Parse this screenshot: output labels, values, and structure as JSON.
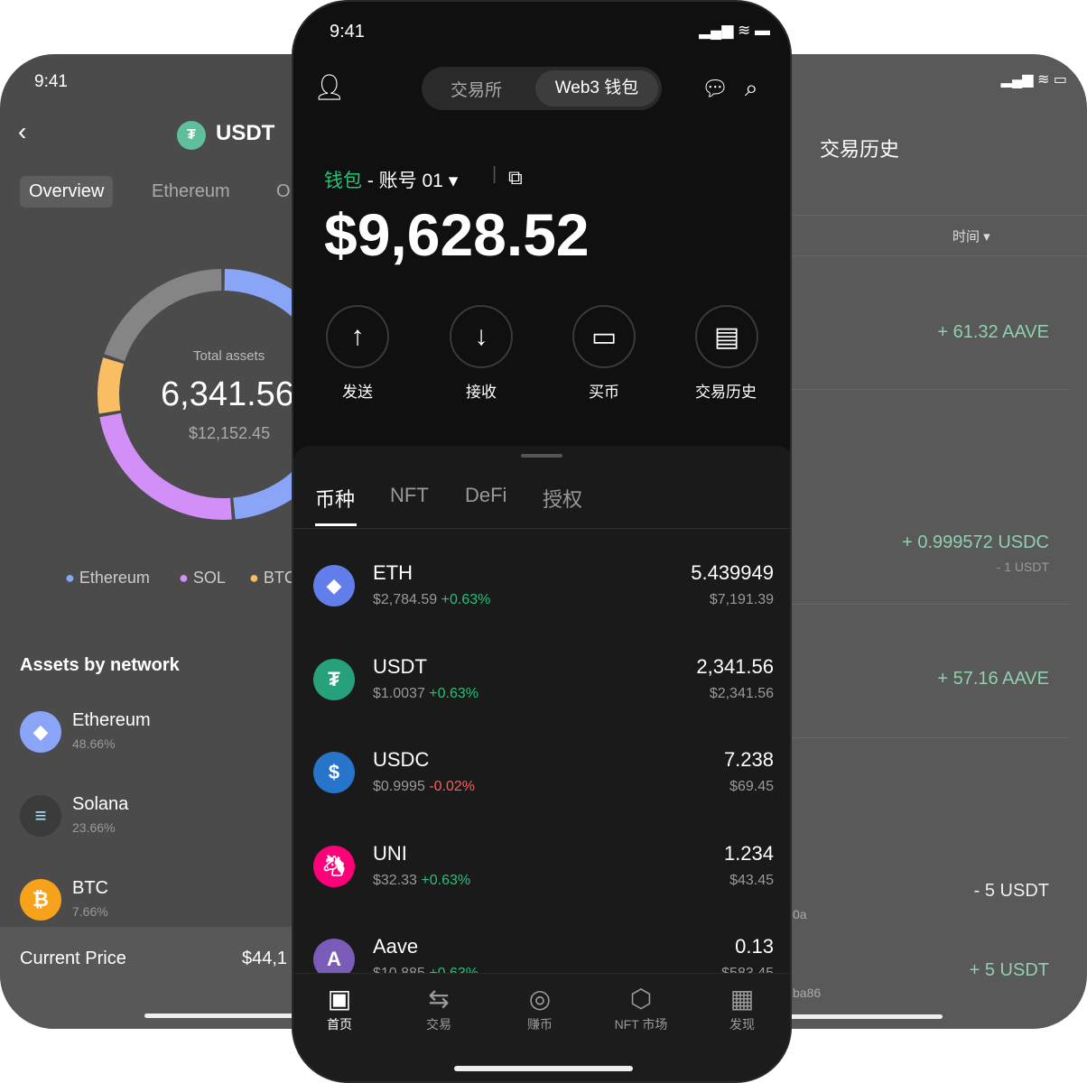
{
  "left": {
    "time": "9:41",
    "title": "USDT",
    "tabs": [
      "Overview",
      "Ethereum",
      "O"
    ],
    "total_label": "Total assets",
    "total_value": "6,341.56",
    "total_usd": "$12,152.45",
    "legend": [
      {
        "label": "Ethereum",
        "color": "#8aa4f7"
      },
      {
        "label": "SOL",
        "color": "#d28ff7"
      },
      {
        "label": "BTC",
        "color": "#f9bd63"
      }
    ],
    "donut": [
      {
        "name": "Ethereum",
        "share": 48.66,
        "color": "#8aa4f7"
      },
      {
        "name": "Solana",
        "share": 23.66,
        "color": "#d28ff7"
      },
      {
        "name": "BTC",
        "share": 7.66,
        "color": "#f9bd63"
      },
      {
        "name": "Other",
        "share": 20.02,
        "color": "#858585"
      }
    ],
    "section_title": "Assets by network",
    "networks": [
      {
        "name": "Ethereum",
        "pct": "48.66%"
      },
      {
        "name": "Solana",
        "pct": "23.66%"
      },
      {
        "name": "BTC",
        "pct": "7.66%"
      }
    ],
    "current_price_label": "Current Price",
    "current_price": "$44,1"
  },
  "center": {
    "time": "9:41",
    "seg_tabs": [
      "交易所",
      "Web3 钱包"
    ],
    "wallet_label": "钱包",
    "account": "- 账号 01",
    "balance": "$9,628.52",
    "actions": [
      "发送",
      "接收",
      "买币",
      "交易历史"
    ],
    "tabs": [
      "币种",
      "NFT",
      "DeFi",
      "授权"
    ],
    "tokens": [
      {
        "symbol": "ETH",
        "price": "$2,784.59",
        "change": "+0.63%",
        "amount": "5.439949",
        "value": "$7,191.39",
        "color": "#627eea"
      },
      {
        "symbol": "USDT",
        "price": "$1.0037",
        "change": "+0.63%",
        "amount": "2,341.56",
        "value": "$2,341.56",
        "color": "#26a17b"
      },
      {
        "symbol": "USDC",
        "price": "$0.9995",
        "change": "-0.02%",
        "amount": "7.238",
        "value": "$69.45",
        "color": "#2775ca"
      },
      {
        "symbol": "UNI",
        "price": "$32.33",
        "change": "+0.63%",
        "amount": "1.234",
        "value": "$43.45",
        "color": "#ff007a"
      },
      {
        "symbol": "Aave",
        "price": "$10.885",
        "change": "+0.63%",
        "amount": "0.13",
        "value": "$583.45",
        "color": "#7a5bb8"
      }
    ],
    "nav": [
      "首页",
      "交易",
      "赚币",
      "NFT 市场",
      "发现"
    ]
  },
  "right": {
    "title": "交易历史",
    "filter": "时间",
    "rows": [
      {
        "amount": "+ 61.32 AAVE"
      },
      {
        "amount": "+ 0.999572 USDC",
        "sub": "- 1 USDT"
      },
      {
        "amount": "+ 57.16 AAVE"
      },
      {
        "amount": "- 5 USDT",
        "hash": "0a"
      },
      {
        "amount": "+ 5 USDT",
        "hash": "ba86"
      }
    ]
  }
}
